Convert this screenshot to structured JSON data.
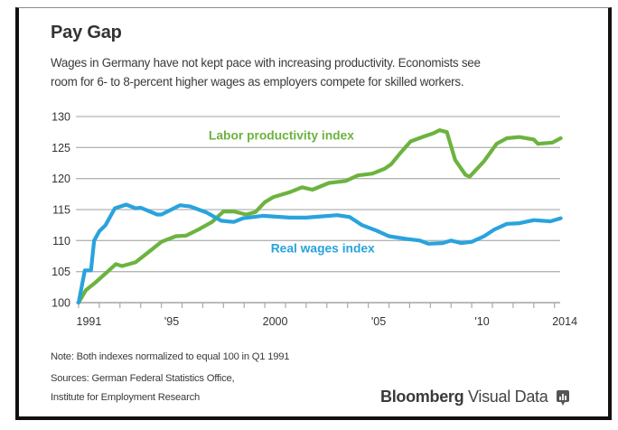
{
  "header": {
    "title": "Pay Gap",
    "subtitle_line1": "Wages in Germany have not kept pace with increasing productivity. Economists see",
    "subtitle_line2": "room for 6- to 8-percent higher wages as employers compete for skilled workers."
  },
  "footer": {
    "note": "Note: Both indexes normalized to equal 100 in Q1 1991",
    "sources_line1": "Sources:  German Federal Statistics Office,",
    "sources_line2": "Institute for Employment Research",
    "brand_bold": "Bloomberg",
    "brand_light": " Visual Data",
    "brand_icon": "bar-chart-bubble-icon"
  },
  "colors": {
    "productivity": "#6cb33f",
    "wages": "#29a3dd",
    "grid": "#b5b5b5"
  },
  "chart_data": {
    "type": "line",
    "title": "Pay Gap",
    "xlabel": "",
    "ylabel": "",
    "xlim": [
      1991,
      2014.5
    ],
    "ylim": [
      100,
      130
    ],
    "grid": true,
    "yticks": [
      100,
      105,
      110,
      115,
      120,
      125,
      130
    ],
    "xticks": [
      1991,
      1992,
      1993,
      1994,
      1995,
      1996,
      1997,
      1998,
      1999,
      2000,
      2001,
      2002,
      2003,
      2004,
      2005,
      2006,
      2007,
      2008,
      2009,
      2010,
      2011,
      2012,
      2013,
      2014
    ],
    "xtick_labels": [
      {
        "year": 1991,
        "label": "1991"
      },
      {
        "year": 1995,
        "label": "'95"
      },
      {
        "year": 2000,
        "label": "2000"
      },
      {
        "year": 2005,
        "label": "'05"
      },
      {
        "year": 2010,
        "label": "'10"
      },
      {
        "year": 2014,
        "label": "2014"
      }
    ],
    "series": [
      {
        "name": "Labor productivity index",
        "color": "#6cb33f",
        "points": [
          [
            1991.0,
            100.0
          ],
          [
            1991.35,
            102.0
          ],
          [
            1991.8,
            103.2
          ],
          [
            1992.4,
            105.0
          ],
          [
            1992.8,
            106.2
          ],
          [
            1993.1,
            105.9
          ],
          [
            1993.75,
            106.5
          ],
          [
            1994.4,
            108.2
          ],
          [
            1995.0,
            109.8
          ],
          [
            1995.7,
            110.7
          ],
          [
            1996.2,
            110.8
          ],
          [
            1996.8,
            111.8
          ],
          [
            1997.45,
            113.0
          ],
          [
            1998.0,
            114.7
          ],
          [
            1998.5,
            114.7
          ],
          [
            1999.1,
            114.2
          ],
          [
            1999.55,
            114.6
          ],
          [
            2000.0,
            116.2
          ],
          [
            2000.4,
            117.0
          ],
          [
            2001.2,
            117.8
          ],
          [
            2001.8,
            118.6
          ],
          [
            2002.3,
            118.2
          ],
          [
            2003.1,
            119.3
          ],
          [
            2003.9,
            119.6
          ],
          [
            2004.5,
            120.5
          ],
          [
            2005.2,
            120.8
          ],
          [
            2005.8,
            121.6
          ],
          [
            2006.1,
            122.3
          ],
          [
            2006.6,
            124.3
          ],
          [
            2007.05,
            126.0
          ],
          [
            2007.7,
            126.8
          ],
          [
            2008.15,
            127.3
          ],
          [
            2008.45,
            127.8
          ],
          [
            2008.8,
            127.5
          ],
          [
            2009.2,
            123.0
          ],
          [
            2009.7,
            120.6
          ],
          [
            2009.9,
            120.3
          ],
          [
            2010.6,
            122.8
          ],
          [
            2011.2,
            125.6
          ],
          [
            2011.7,
            126.5
          ],
          [
            2012.3,
            126.7
          ],
          [
            2013.0,
            126.3
          ],
          [
            2013.2,
            125.6
          ],
          [
            2013.9,
            125.8
          ],
          [
            2014.3,
            126.5
          ]
        ]
      },
      {
        "name": "Real wages index",
        "color": "#29a3dd",
        "points": [
          [
            1991.0,
            100.0
          ],
          [
            1991.3,
            105.2
          ],
          [
            1991.6,
            105.2
          ],
          [
            1991.75,
            110.0
          ],
          [
            1992.0,
            111.5
          ],
          [
            1992.3,
            112.5
          ],
          [
            1992.75,
            115.2
          ],
          [
            1993.3,
            115.8
          ],
          [
            1993.75,
            115.2
          ],
          [
            1994.0,
            115.3
          ],
          [
            1994.8,
            114.2
          ],
          [
            1995.0,
            114.2
          ],
          [
            1995.9,
            115.7
          ],
          [
            1996.4,
            115.5
          ],
          [
            1997.2,
            114.5
          ],
          [
            1997.9,
            113.2
          ],
          [
            1998.5,
            113.0
          ],
          [
            1998.95,
            113.6
          ],
          [
            1999.9,
            114.0
          ],
          [
            2001.2,
            113.7
          ],
          [
            2002.0,
            113.7
          ],
          [
            2003.5,
            114.1
          ],
          [
            2004.1,
            113.8
          ],
          [
            2004.7,
            112.5
          ],
          [
            2005.4,
            111.6
          ],
          [
            2006.0,
            110.7
          ],
          [
            2006.8,
            110.3
          ],
          [
            2007.5,
            110.0
          ],
          [
            2007.9,
            109.5
          ],
          [
            2008.6,
            109.6
          ],
          [
            2009.0,
            110.0
          ],
          [
            2009.5,
            109.6
          ],
          [
            2010.0,
            109.8
          ],
          [
            2010.6,
            110.7
          ],
          [
            2011.1,
            111.8
          ],
          [
            2011.7,
            112.7
          ],
          [
            2012.3,
            112.8
          ],
          [
            2013.0,
            113.3
          ],
          [
            2013.8,
            113.1
          ],
          [
            2014.3,
            113.6
          ]
        ]
      }
    ],
    "annotations": [
      {
        "text": "Labor productivity index",
        "series": "Labor productivity index",
        "x": 2000.8,
        "y": 126.3
      },
      {
        "text": "Real wages index",
        "series": "Real wages index",
        "x": 2002.8,
        "y": 108.1
      }
    ],
    "legend": "inline-labels"
  }
}
